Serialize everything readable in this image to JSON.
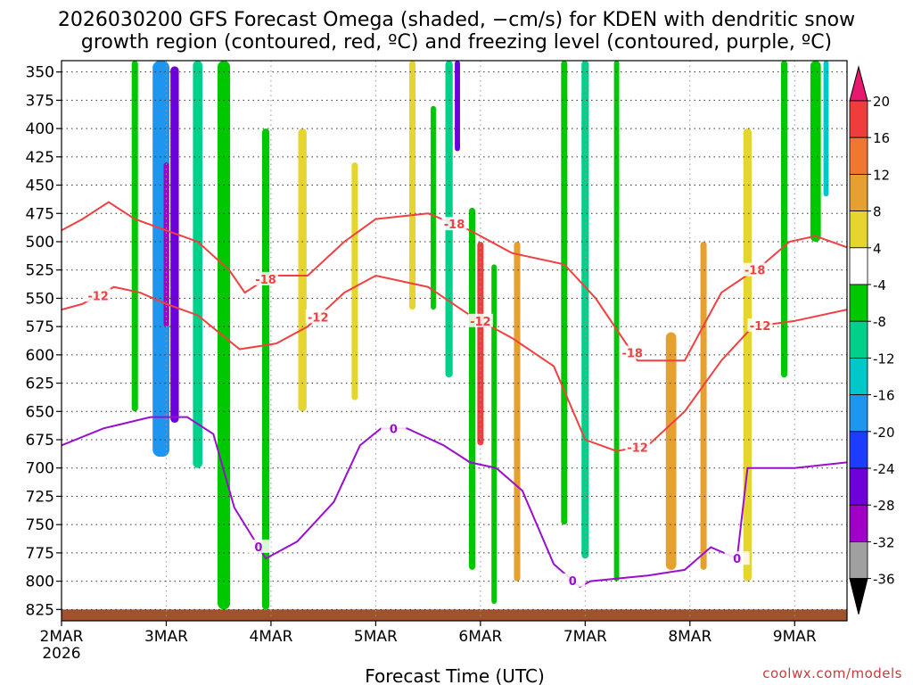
{
  "chart_data": {
    "type": "heatmap",
    "title_line1": "2026030200 GFS Forecast Omega (shaded, −cm/s) for KDEN with dendritic snow",
    "title_line2": "growth region (contoured, red, ºC) and freezing level (contoured, purple, ºC)",
    "xlabel": "Forecast Time (UTC)",
    "ylabel": "",
    "x_ticks": [
      "2MAR",
      "3MAR",
      "4MAR",
      "5MAR",
      "6MAR",
      "7MAR",
      "8MAR",
      "9MAR"
    ],
    "x_year_label": "2026",
    "xlim": [
      0,
      7.5
    ],
    "y_ticks": [
      "350",
      "375",
      "400",
      "425",
      "450",
      "475",
      "500",
      "525",
      "550",
      "575",
      "600",
      "625",
      "650",
      "675",
      "700",
      "725",
      "750",
      "775",
      "800",
      "825"
    ],
    "ylim": [
      340,
      835
    ],
    "colorbar": {
      "tick_labels": [
        "20",
        "16",
        "12",
        "8",
        "4",
        "-4",
        "-8",
        "-12",
        "-16",
        "-20",
        "-24",
        "-28",
        "-32",
        "-36"
      ],
      "bands": [
        {
          "lo": 16,
          "hi": 20,
          "color": "#f03c3c"
        },
        {
          "lo": 12,
          "hi": 16,
          "color": "#f27530"
        },
        {
          "lo": 8,
          "hi": 12,
          "color": "#e6a02f"
        },
        {
          "lo": 4,
          "hi": 8,
          "color": "#e6d42f"
        },
        {
          "lo": -4,
          "hi": 4,
          "color": "#ffffff"
        },
        {
          "lo": -8,
          "hi": -4,
          "color": "#00c800"
        },
        {
          "lo": -12,
          "hi": -8,
          "color": "#00d08a"
        },
        {
          "lo": -16,
          "hi": -12,
          "color": "#00c8c8"
        },
        {
          "lo": -20,
          "hi": -16,
          "color": "#1e96f0"
        },
        {
          "lo": -24,
          "hi": -20,
          "color": "#1e3cff"
        },
        {
          "lo": -28,
          "hi": -24,
          "color": "#6e00dc"
        },
        {
          "lo": -32,
          "hi": -28,
          "color": "#a000c8"
        },
        {
          "lo": -36,
          "hi": -32,
          "color": "#a0a0a0"
        }
      ],
      "top_arrow_color": "#e6196e",
      "bottom_arrow_color": "#000000"
    },
    "omega_features": [
      {
        "x": 0.95,
        "y1": 340,
        "y2": 690,
        "w": 0.16,
        "level": -20
      },
      {
        "x": 1.08,
        "y1": 345,
        "y2": 660,
        "w": 0.08,
        "level": -28
      },
      {
        "x": 1.0,
        "y1": 430,
        "y2": 575,
        "w": 0.05,
        "level": -32
      },
      {
        "x": 1.3,
        "y1": 340,
        "y2": 700,
        "w": 0.09,
        "level": -12
      },
      {
        "x": 0.7,
        "y1": 340,
        "y2": 650,
        "w": 0.06,
        "level": -8
      },
      {
        "x": 1.55,
        "y1": 340,
        "y2": 825,
        "w": 0.12,
        "level": -8
      },
      {
        "x": 1.95,
        "y1": 400,
        "y2": 825,
        "w": 0.07,
        "level": -8
      },
      {
        "x": 2.3,
        "y1": 400,
        "y2": 650,
        "w": 0.08,
        "level": 4
      },
      {
        "x": 2.8,
        "y1": 430,
        "y2": 640,
        "w": 0.06,
        "level": 4
      },
      {
        "x": 3.35,
        "y1": 340,
        "y2": 560,
        "w": 0.06,
        "level": 4
      },
      {
        "x": 3.55,
        "y1": 380,
        "y2": 560,
        "w": 0.05,
        "level": -8
      },
      {
        "x": 3.7,
        "y1": 340,
        "y2": 620,
        "w": 0.07,
        "level": -12
      },
      {
        "x": 3.78,
        "y1": 340,
        "y2": 420,
        "w": 0.05,
        "level": -28
      },
      {
        "x": 3.92,
        "y1": 470,
        "y2": 790,
        "w": 0.06,
        "level": -8
      },
      {
        "x": 4.0,
        "y1": 500,
        "y2": 680,
        "w": 0.06,
        "level": 16
      },
      {
        "x": 4.13,
        "y1": 520,
        "y2": 820,
        "w": 0.05,
        "level": -8
      },
      {
        "x": 4.35,
        "y1": 500,
        "y2": 800,
        "w": 0.06,
        "level": 8
      },
      {
        "x": 4.8,
        "y1": 340,
        "y2": 750,
        "w": 0.06,
        "level": -8
      },
      {
        "x": 5.0,
        "y1": 340,
        "y2": 780,
        "w": 0.07,
        "level": -12
      },
      {
        "x": 5.3,
        "y1": 340,
        "y2": 800,
        "w": 0.05,
        "level": -8
      },
      {
        "x": 5.82,
        "y1": 580,
        "y2": 790,
        "w": 0.1,
        "level": 8
      },
      {
        "x": 6.13,
        "y1": 500,
        "y2": 790,
        "w": 0.06,
        "level": 8
      },
      {
        "x": 6.55,
        "y1": 400,
        "y2": 800,
        "w": 0.08,
        "level": 4
      },
      {
        "x": 6.9,
        "y1": 340,
        "y2": 620,
        "w": 0.06,
        "level": -8
      },
      {
        "x": 7.2,
        "y1": 340,
        "y2": 500,
        "w": 0.1,
        "level": -8
      },
      {
        "x": 7.3,
        "y1": 340,
        "y2": 460,
        "w": 0.05,
        "level": -16
      }
    ],
    "contours": [
      {
        "name": "-18 C",
        "color": "#f04040",
        "label": "-18",
        "x": [
          0,
          0.2,
          0.45,
          0.7,
          1.0,
          1.3,
          1.6,
          1.75,
          2.0,
          2.35,
          2.7,
          3.0,
          3.5,
          3.9,
          4.3,
          4.8,
          5.1,
          5.5,
          5.95,
          6.3,
          6.7,
          6.95,
          7.2,
          7.5
        ],
        "y": [
          490,
          480,
          465,
          480,
          490,
          500,
          525,
          545,
          530,
          530,
          500,
          480,
          475,
          490,
          510,
          520,
          550,
          605,
          605,
          545,
          520,
          500,
          495,
          505
        ],
        "labels_at": [
          1.95,
          3.75,
          5.45,
          6.62
        ]
      },
      {
        "name": "-12 C",
        "color": "#f04040",
        "label": "-12",
        "x": [
          0,
          0.2,
          0.5,
          0.75,
          1.0,
          1.3,
          1.7,
          2.05,
          2.35,
          2.7,
          3.0,
          3.5,
          3.9,
          4.3,
          4.7,
          5.0,
          5.3,
          5.6,
          5.95,
          6.3,
          6.6,
          7.0,
          7.5
        ],
        "y": [
          560,
          555,
          540,
          545,
          555,
          565,
          595,
          590,
          575,
          545,
          530,
          540,
          565,
          585,
          610,
          675,
          685,
          680,
          650,
          605,
          575,
          570,
          560
        ],
        "labels_at": [
          0.35,
          2.45,
          4.0,
          5.5,
          6.67
        ]
      },
      {
        "name": "0 C (freezing level)",
        "color": "#9a0fcf",
        "label": "0",
        "x": [
          0,
          0.4,
          0.85,
          1.2,
          1.45,
          1.65,
          1.95,
          2.25,
          2.6,
          2.85,
          3.05,
          3.3,
          3.65,
          3.9,
          4.15,
          4.4,
          4.7,
          4.95,
          5.05,
          5.6,
          5.95,
          6.2,
          6.45,
          6.55,
          6.8,
          7.0,
          7.5
        ],
        "y": [
          680,
          665,
          655,
          655,
          670,
          735,
          780,
          765,
          730,
          680,
          665,
          665,
          680,
          695,
          700,
          720,
          785,
          805,
          800,
          795,
          790,
          770,
          780,
          700,
          700,
          700,
          695
        ],
        "labels_at": [
          1.88,
          3.17,
          4.88,
          6.45
        ]
      }
    ],
    "terrain_top": 825,
    "terrain_color": "#a0522d",
    "source_credit": "coolwx.com/models"
  }
}
